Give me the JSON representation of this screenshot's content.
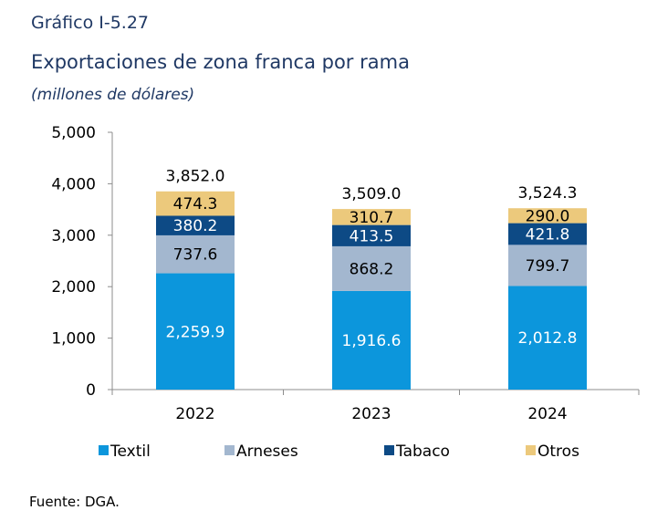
{
  "header": {
    "kicker": "Gráfico I-5.27",
    "title": "Exportaciones de zona franca por rama",
    "subtitle": "(millones de dólares)"
  },
  "source": "Fuente: DGA.",
  "chart_data": {
    "type": "bar",
    "stacked": true,
    "categories": [
      "2022",
      "2023",
      "2024"
    ],
    "series": [
      {
        "name": "Textil",
        "values": [
          2259.9,
          1916.6,
          2012.8
        ],
        "labels": [
          "2,259.9",
          "1,916.6",
          "2,012.8"
        ],
        "color": "#0c96dc",
        "label_color": "#ffffff"
      },
      {
        "name": "Arneses",
        "values": [
          737.6,
          868.2,
          799.7
        ],
        "labels": [
          "737.6",
          "868.2",
          "799.7"
        ],
        "color": "#a3b7cf",
        "label_color": "#000000"
      },
      {
        "name": "Tabaco",
        "values": [
          380.2,
          413.5,
          421.8
        ],
        "labels": [
          "380.2",
          "413.5",
          "421.8"
        ],
        "color": "#0d4a85",
        "label_color": "#ffffff"
      },
      {
        "name": "Otros",
        "values": [
          474.3,
          310.7,
          290.0
        ],
        "labels": [
          "474.3",
          "310.7",
          "290.0"
        ],
        "color": "#ecc97c",
        "label_color": "#000000"
      }
    ],
    "totals": [
      "3,852.0",
      "3,509.0",
      "3,524.3"
    ],
    "ylim": [
      0,
      5000
    ],
    "yticks": [
      0,
      1000,
      2000,
      3000,
      4000,
      5000
    ],
    "ytick_labels": [
      "0",
      "1,000",
      "2,000",
      "3,000",
      "4,000",
      "5,000"
    ],
    "grid": false,
    "legend_position": "bottom"
  }
}
